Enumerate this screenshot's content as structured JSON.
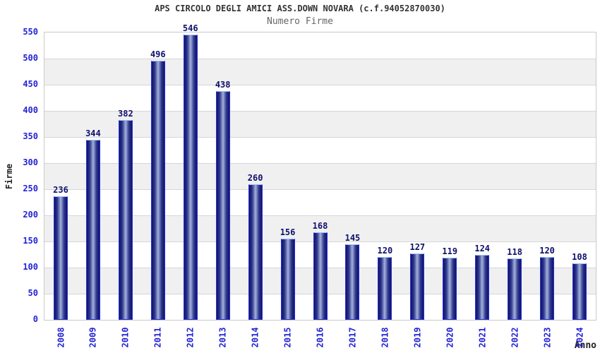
{
  "header": {
    "title": "APS CIRCOLO DEGLI AMICI ASS.DOWN NOVARA (c.f.94052870030)",
    "subtitle": "Numero Firme"
  },
  "chart_data": {
    "type": "bar",
    "title": "APS CIRCOLO DEGLI AMICI ASS.DOWN NOVARA (c.f.94052870030)",
    "subtitle": "Numero Firme",
    "xlabel": "Anno",
    "ylabel": "Firme",
    "categories": [
      "2008",
      "2009",
      "2010",
      "2011",
      "2012",
      "2013",
      "2014",
      "2015",
      "2016",
      "2017",
      "2018",
      "2019",
      "2020",
      "2021",
      "2022",
      "2023",
      "2024"
    ],
    "values": [
      236,
      344,
      382,
      496,
      546,
      438,
      260,
      156,
      168,
      145,
      120,
      127,
      119,
      124,
      118,
      120,
      108
    ],
    "ylim": [
      0,
      550
    ],
    "ytick_step": 50,
    "grid": "horizontal-bands",
    "legend": "none",
    "bar_value_labels": true,
    "x_tick_rotation": -90
  },
  "colors": {
    "title": "#333333",
    "subtitle": "#666666",
    "tick_label": "#2222d6",
    "value_label": "#0f0f6e",
    "axis_label": "#222222",
    "band_gray": "#f0f0f0",
    "band_white": "#ffffff",
    "gridline": "#d6d6d6",
    "plot_border": "#c9c9c9",
    "bar_edge": "#141460",
    "bar_dark": "#1e1e78",
    "bar_mid": "#2f3a8c",
    "bar_light": "#7583bf",
    "bar_center": "#a7b0da",
    "bar_border": "#2233dd",
    "bar_border_top": "#9dc0f9"
  }
}
